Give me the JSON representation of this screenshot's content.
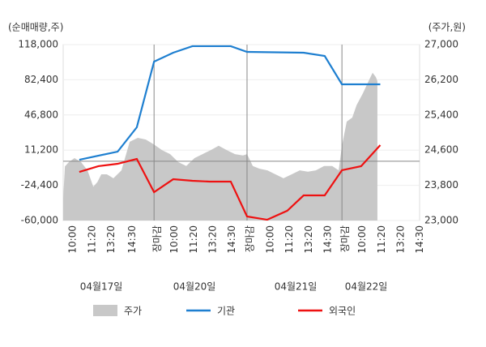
{
  "chart_data": {
    "type": "combo",
    "y_axis_label": "(순매매량,주)",
    "y2_axis_label": "(주가,원)",
    "ylim": [
      -60000,
      118000
    ],
    "yticks": [
      {
        "value": 118000,
        "label": "118,000"
      },
      {
        "value": 82400,
        "label": "82,400"
      },
      {
        "value": 46800,
        "label": "46,800"
      },
      {
        "value": 11200,
        "label": "11,200"
      },
      {
        "value": -24400,
        "label": "-24,400"
      },
      {
        "value": -60000,
        "label": "-60,000"
      }
    ],
    "y2lim": [
      23000,
      27000
    ],
    "y2ticks": [
      {
        "value": 27000,
        "label": "27,000"
      },
      {
        "value": 26200,
        "label": "26,200"
      },
      {
        "value": 25400,
        "label": "25,400"
      },
      {
        "value": 24600,
        "label": "24,600"
      },
      {
        "value": 23800,
        "label": "23,800"
      },
      {
        "value": 23000,
        "label": "23,000"
      }
    ],
    "xlim": [
      -0.34,
      18.25
    ],
    "xticks": [
      {
        "value": 0,
        "label": "10:00"
      },
      {
        "value": 1,
        "label": "11:20"
      },
      {
        "value": 2,
        "label": "13:20"
      },
      {
        "value": 3.1,
        "label": "14:30"
      },
      {
        "value": 4.4,
        "label": "장마감",
        "color": "#e00000"
      },
      {
        "value": 5.3,
        "label": "10:00"
      },
      {
        "value": 6.3,
        "label": "11:20"
      },
      {
        "value": 7.3,
        "label": "13:20"
      },
      {
        "value": 8.3,
        "label": "14:30"
      },
      {
        "value": 9.25,
        "label": "장마감",
        "color": "#e00000"
      },
      {
        "value": 10.3,
        "label": "10:00"
      },
      {
        "value": 11.3,
        "label": "11:20"
      },
      {
        "value": 12.3,
        "label": "13:20"
      },
      {
        "value": 13.3,
        "label": "14:30"
      },
      {
        "value": 14.2,
        "label": "장마감",
        "color": "#e00000"
      },
      {
        "value": 15.1,
        "label": "10:00"
      },
      {
        "value": 16.1,
        "label": "11:20"
      },
      {
        "value": 17.1,
        "label": "13:20"
      },
      {
        "value": 18.1,
        "label": "14:30"
      }
    ],
    "day_labels": [
      "04월17일",
      "04월20일",
      "04월21일",
      "04월22일"
    ],
    "series": [
      {
        "name": "주가",
        "type": "area",
        "axis": "y2",
        "color": "#c8c8c8",
        "x": [
          -0.34,
          -0.25,
          -0.04,
          0.25,
          0.59,
          0.93,
          1.23,
          1.44,
          1.65,
          1.94,
          2.28,
          2.7,
          3.13,
          3.55,
          3.97,
          4.39,
          4.82,
          5.24,
          5.66,
          6.08,
          6.51,
          6.93,
          7.35,
          7.77,
          8.2,
          8.62,
          9.04,
          9.25,
          9.55,
          9.89,
          10.31,
          10.73,
          11.15,
          11.58,
          12.0,
          12.42,
          12.84,
          13.27,
          13.69,
          14.03,
          14.2,
          14.45,
          14.74,
          14.96,
          15.29,
          15.59,
          15.8,
          15.97,
          16.05
        ],
        "values": [
          23500,
          24230,
          24330,
          24420,
          24330,
          24140,
          23770,
          23870,
          24050,
          24050,
          23960,
          24140,
          24790,
          24880,
          24840,
          24730,
          24600,
          24510,
          24330,
          24240,
          24420,
          24510,
          24600,
          24700,
          24600,
          24510,
          24480,
          24510,
          24240,
          24180,
          24140,
          24050,
          23960,
          24050,
          24140,
          24110,
          24140,
          24240,
          24240,
          24140,
          24700,
          25250,
          25340,
          25620,
          25890,
          26170,
          26360,
          26260,
          26170
        ]
      },
      {
        "name": "기관",
        "type": "line",
        "color": "#1e7fd0",
        "x": [
          0.5,
          2.5,
          3.5,
          4.4,
          5.4,
          6.4,
          8.4,
          9.25,
          12.2,
          13.3,
          14.2,
          15.2,
          16.2
        ],
        "values": [
          1500,
          9700,
          34300,
          100800,
          109800,
          116400,
          116400,
          110600,
          109800,
          106500,
          77800,
          77800,
          77800
        ]
      },
      {
        "name": "외국인",
        "type": "line",
        "color": "#ee1111",
        "x": [
          0.5,
          1.5,
          2.5,
          3.5,
          4.4,
          5.4,
          6.4,
          7.3,
          8.4,
          9.25,
          10.3,
          11.35,
          12.2,
          13.3,
          14.2,
          15.2,
          16.2
        ],
        "values": [
          -10800,
          -5000,
          -2600,
          2300,
          -31300,
          -18200,
          -19800,
          -20600,
          -20600,
          -55900,
          -59200,
          -50100,
          -34600,
          -34600,
          -9100,
          -5000,
          16300
        ]
      }
    ]
  }
}
